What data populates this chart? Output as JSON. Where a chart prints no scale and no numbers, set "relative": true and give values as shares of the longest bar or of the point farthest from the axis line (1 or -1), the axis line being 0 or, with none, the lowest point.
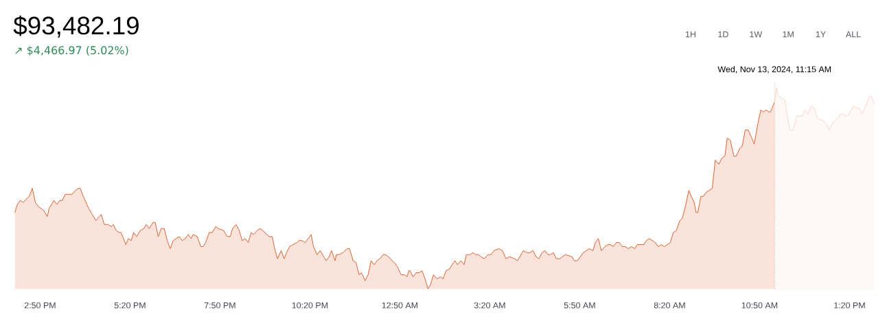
{
  "chart_data": {
    "type": "area",
    "title": "$93,482.19",
    "subtitle": "↗ $4,466.97 (5.02%)",
    "relative": true,
    "annotations": [
      "1H",
      "1D",
      "1W",
      "1M",
      "1Y",
      "ALL"
    ],
    "xlim": [
      "2024-11-12T14:06",
      "2024-11-13T14:03"
    ],
    "xticks": [
      {
        "value": "2024-11-12T14:50",
        "label": "2:50 PM"
      },
      {
        "value": "2024-11-12T17:20",
        "label": "5:20 PM"
      },
      {
        "value": "2024-11-12T19:50",
        "label": "7:50 PM"
      },
      {
        "value": "2024-11-12T22:20",
        "label": "10:20 PM"
      },
      {
        "value": "2024-11-13T00:50",
        "label": "12:50 AM"
      },
      {
        "value": "2024-11-13T03:20",
        "label": "3:20 AM"
      },
      {
        "value": "2024-11-13T05:50",
        "label": "5:50 AM"
      },
      {
        "value": "2024-11-13T08:20",
        "label": "8:20 AM"
      },
      {
        "value": "2024-11-13T10:50",
        "label": "10:50 AM"
      },
      {
        "value": "2024-11-13T13:20",
        "label": "1:20 PM"
      }
    ],
    "marker": "none",
    "ref_lines": [
      {
        "axis": "x",
        "value": "2024-11-13T11:15",
        "label": "Wed, Nov 13, 2024, 11:15 AM",
        "color": "#f0a868",
        "line_style": "dotted"
      }
    ],
    "series": [
      {
        "color": "#d9531e",
        "x": [
          "2024-11-12T14:08",
          "2024-11-12T14:12",
          "2024-11-12T14:17",
          "2024-11-12T14:22",
          "2024-11-12T14:28",
          "2024-11-12T14:32",
          "2024-11-12T14:37",
          "2024-11-12T14:42",
          "2024-11-12T14:47",
          "2024-11-12T14:56",
          "2024-11-12T15:02",
          "2024-11-12T15:05",
          "2024-11-12T15:13",
          "2024-11-12T15:18",
          "2024-11-12T15:23",
          "2024-11-12T15:27",
          "2024-11-12T15:32",
          "2024-11-12T15:37",
          "2024-11-12T15:43",
          "2024-11-12T15:49",
          "2024-11-12T15:54",
          "2024-11-12T15:57",
          "2024-11-12T16:02",
          "2024-11-12T16:08",
          "2024-11-12T16:11",
          "2024-11-12T16:17",
          "2024-11-12T16:23",
          "2024-11-12T16:26",
          "2024-11-12T16:32",
          "2024-11-12T16:37",
          "2024-11-12T16:43",
          "2024-11-12T16:49",
          "2024-11-12T16:52",
          "2024-11-12T16:57",
          "2024-11-12T17:02",
          "2024-11-12T17:05",
          "2024-11-12T17:13",
          "2024-11-12T17:17",
          "2024-11-12T17:22",
          "2024-11-12T17:26",
          "2024-11-12T17:31",
          "2024-11-12T17:37",
          "2024-11-12T17:43",
          "2024-11-12T17:47",
          "2024-11-12T17:52",
          "2024-11-12T17:58",
          "2024-11-12T18:02",
          "2024-11-12T18:07",
          "2024-11-12T18:12",
          "2024-11-12T18:17",
          "2024-11-12T18:22",
          "2024-11-12T18:27",
          "2024-11-12T18:32",
          "2024-11-12T18:37",
          "2024-11-12T18:42",
          "2024-11-12T18:47",
          "2024-11-12T18:52",
          "2024-11-12T18:57",
          "2024-11-12T19:02",
          "2024-11-12T19:05",
          "2024-11-12T19:12",
          "2024-11-12T19:18",
          "2024-11-12T19:22",
          "2024-11-12T19:26",
          "2024-11-12T19:32",
          "2024-11-12T19:37",
          "2024-11-12T19:43",
          "2024-11-12T19:47",
          "2024-11-12T19:56",
          "2024-11-12T20:02",
          "2024-11-12T20:07",
          "2024-11-12T20:11",
          "2024-11-12T20:17",
          "2024-11-12T20:22",
          "2024-11-12T20:27",
          "2024-11-12T20:32",
          "2024-11-12T20:37",
          "2024-11-12T20:42",
          "2024-11-12T20:46",
          "2024-11-12T20:52",
          "2024-11-12T20:57",
          "2024-11-12T21:05",
          "2024-11-12T21:12",
          "2024-11-12T21:17",
          "2024-11-12T21:22",
          "2024-11-12T21:26",
          "2024-11-12T21:32",
          "2024-11-12T21:37",
          "2024-11-12T21:41",
          "2024-11-12T21:46",
          "2024-11-12T21:52",
          "2024-11-12T21:58",
          "2024-11-12T22:02",
          "2024-11-12T22:07",
          "2024-11-12T22:12",
          "2024-11-12T22:17",
          "2024-11-12T22:22",
          "2024-11-12T22:26",
          "2024-11-12T22:32",
          "2024-11-12T22:37",
          "2024-11-12T22:41",
          "2024-11-12T22:47",
          "2024-11-12T22:52",
          "2024-11-12T22:56",
          "2024-11-12T23:02",
          "2024-11-12T23:04",
          "2024-11-12T23:09",
          "2024-11-12T23:15",
          "2024-11-12T23:22",
          "2024-11-12T23:26",
          "2024-11-12T23:32",
          "2024-11-12T23:37",
          "2024-11-12T23:42",
          "2024-11-12T23:46",
          "2024-11-12T23:52",
          "2024-11-12T23:57",
          "2024-11-13T00:02",
          "2024-11-13T00:07",
          "2024-11-13T00:12",
          "2024-11-13T00:17",
          "2024-11-13T00:22",
          "2024-11-13T00:26",
          "2024-11-13T00:31",
          "2024-11-13T00:37",
          "2024-11-13T00:41",
          "2024-11-13T00:46",
          "2024-11-13T00:52",
          "2024-11-13T00:58",
          "2024-11-13T01:02",
          "2024-11-13T01:05",
          "2024-11-13T01:07",
          "2024-11-13T01:12",
          "2024-11-13T01:17",
          "2024-11-13T01:22",
          "2024-11-13T01:27",
          "2024-11-13T01:32",
          "2024-11-13T01:37",
          "2024-11-13T01:41",
          "2024-11-13T01:46",
          "2024-11-13T01:52",
          "2024-11-13T01:58",
          "2024-11-13T02:02",
          "2024-11-13T02:07",
          "2024-11-13T02:13",
          "2024-11-13T02:17",
          "2024-11-13T02:22",
          "2024-11-13T02:26",
          "2024-11-13T02:32",
          "2024-11-13T02:37",
          "2024-11-13T02:41",
          "2024-11-13T02:47",
          "2024-11-13T02:52",
          "2024-11-13T02:56",
          "2024-11-13T03:01",
          "2024-11-13T03:05",
          "2024-11-13T03:11",
          "2024-11-13T03:17",
          "2024-11-13T03:22",
          "2024-11-13T03:27",
          "2024-11-13T03:35",
          "2024-11-13T03:41",
          "2024-11-13T03:47",
          "2024-11-13T03:53",
          "2024-11-13T04:01",
          "2024-11-13T04:06",
          "2024-11-13T04:16",
          "2024-11-13T04:22",
          "2024-11-13T04:27",
          "2024-11-13T04:32",
          "2024-11-13T04:37",
          "2024-11-13T04:42",
          "2024-11-13T04:47",
          "2024-11-13T04:52",
          "2024-11-13T04:57",
          "2024-11-13T05:01",
          "2024-11-13T05:06",
          "2024-11-13T05:11",
          "2024-11-13T05:17",
          "2024-11-13T05:21",
          "2024-11-13T05:26",
          "2024-11-13T05:37",
          "2024-11-13T05:41",
          "2024-11-13T05:46",
          "2024-11-13T05:51",
          "2024-11-13T05:56",
          "2024-11-13T06:01",
          "2024-11-13T06:06",
          "2024-11-13T06:12",
          "2024-11-13T06:16",
          "2024-11-13T06:21",
          "2024-11-13T06:26",
          "2024-11-13T06:32",
          "2024-11-13T06:37",
          "2024-11-13T06:41",
          "2024-11-13T06:46",
          "2024-11-13T06:51",
          "2024-11-13T06:56",
          "2024-11-13T07:01",
          "2024-11-13T07:06",
          "2024-11-13T07:11",
          "2024-11-13T07:16",
          "2024-11-13T07:22",
          "2024-11-13T07:26",
          "2024-11-13T07:32",
          "2024-11-13T07:37",
          "2024-11-13T07:41",
          "2024-11-13T07:46",
          "2024-11-13T07:51",
          "2024-11-13T07:56",
          "2024-11-13T08:01",
          "2024-11-13T08:06",
          "2024-11-13T08:11",
          "2024-11-13T08:16",
          "2024-11-13T08:21",
          "2024-11-13T08:26",
          "2024-11-13T08:31",
          "2024-11-13T08:37",
          "2024-11-13T08:41",
          "2024-11-13T08:47",
          "2024-11-13T08:52",
          "2024-11-13T08:56",
          "2024-11-13T09:01",
          "2024-11-13T09:04",
          "2024-11-13T09:07",
          "2024-11-13T09:12",
          "2024-11-13T09:16",
          "2024-11-13T09:21",
          "2024-11-13T09:26",
          "2024-11-13T09:31",
          "2024-11-13T09:36",
          "2024-11-13T09:42",
          "2024-11-13T09:47",
          "2024-11-13T09:52",
          "2024-11-13T09:56",
          "2024-11-13T10:01",
          "2024-11-13T10:07",
          "2024-11-13T10:11",
          "2024-11-13T10:17",
          "2024-11-13T10:21",
          "2024-11-13T10:26",
          "2024-11-13T10:31",
          "2024-11-13T10:37",
          "2024-11-13T10:41",
          "2024-11-13T10:47",
          "2024-11-13T10:52",
          "2024-11-13T10:56",
          "2024-11-13T11:01",
          "2024-11-13T11:05",
          "2024-11-13T11:08",
          "2024-11-13T11:11",
          "2024-11-13T11:15"
        ],
        "values": [
          0.38,
          0.42,
          0.44,
          0.43,
          0.45,
          0.46,
          0.5,
          0.43,
          0.41,
          0.39,
          0.36,
          0.4,
          0.44,
          0.42,
          0.44,
          0.44,
          0.47,
          0.47,
          0.47,
          0.49,
          0.5,
          0.5,
          0.46,
          0.42,
          0.4,
          0.37,
          0.34,
          0.35,
          0.37,
          0.32,
          0.32,
          0.31,
          0.32,
          0.29,
          0.28,
          0.28,
          0.22,
          0.25,
          0.24,
          0.28,
          0.26,
          0.29,
          0.3,
          0.32,
          0.3,
          0.33,
          0.33,
          0.26,
          0.3,
          0.3,
          0.24,
          0.2,
          0.24,
          0.25,
          0.26,
          0.24,
          0.25,
          0.27,
          0.25,
          0.27,
          0.26,
          0.21,
          0.21,
          0.23,
          0.28,
          0.28,
          0.31,
          0.3,
          0.29,
          0.26,
          0.26,
          0.3,
          0.32,
          0.29,
          0.24,
          0.25,
          0.23,
          0.28,
          0.27,
          0.29,
          0.3,
          0.28,
          0.26,
          0.26,
          0.19,
          0.15,
          0.19,
          0.15,
          0.18,
          0.21,
          0.22,
          0.23,
          0.24,
          0.24,
          0.23,
          0.25,
          0.27,
          0.21,
          0.17,
          0.19,
          0.17,
          0.14,
          0.16,
          0.19,
          0.14,
          0.17,
          0.17,
          0.18,
          0.2,
          0.2,
          0.14,
          0.13,
          0.07,
          0.08,
          0.04,
          0.07,
          0.14,
          0.12,
          0.14,
          0.15,
          0.17,
          0.17,
          0.16,
          0.14,
          0.13,
          0.11,
          0.07,
          0.07,
          0.06,
          0.09,
          0.09,
          0.06,
          0.08,
          0.08,
          0.09,
          0.05,
          0.0,
          0.02,
          0.07,
          0.05,
          0.06,
          0.05,
          0.09,
          0.1,
          0.12,
          0.14,
          0.12,
          0.14,
          0.12,
          0.17,
          0.17,
          0.18,
          0.17,
          0.17,
          0.16,
          0.15,
          0.17,
          0.17,
          0.19,
          0.2,
          0.19,
          0.15,
          0.16,
          0.15,
          0.14,
          0.19,
          0.18,
          0.18,
          0.19,
          0.16,
          0.15,
          0.18,
          0.19,
          0.17,
          0.17,
          0.18,
          0.15,
          0.15,
          0.16,
          0.17,
          0.16,
          0.14,
          0.14,
          0.16,
          0.18,
          0.19,
          0.2,
          0.19,
          0.23,
          0.25,
          0.19,
          0.21,
          0.22,
          0.22,
          0.21,
          0.23,
          0.23,
          0.21,
          0.21,
          0.2,
          0.21,
          0.2,
          0.22,
          0.22,
          0.22,
          0.24,
          0.25,
          0.24,
          0.23,
          0.21,
          0.22,
          0.21,
          0.22,
          0.23,
          0.28,
          0.29,
          0.34,
          0.35,
          0.42,
          0.49,
          0.46,
          0.43,
          0.38,
          0.38,
          0.46,
          0.46,
          0.48,
          0.49,
          0.5,
          0.64,
          0.62,
          0.65,
          0.66,
          0.75,
          0.74,
          0.66,
          0.66,
          0.7,
          0.71,
          0.79,
          0.79,
          0.75,
          0.72,
          0.82,
          0.89,
          0.88,
          0.89,
          0.88,
          0.88,
          0.9,
          0.93
        ]
      },
      {
        "color": "#f8d4c5",
        "x": [
          "2024-11-13T11:15",
          "2024-11-13T11:18",
          "2024-11-13T11:21",
          "2024-11-13T11:26",
          "2024-11-13T11:32",
          "2024-11-13T11:37",
          "2024-11-13T11:41",
          "2024-11-13T11:46",
          "2024-11-13T11:52",
          "2024-11-13T11:56",
          "2024-11-13T12:01",
          "2024-11-13T12:06",
          "2024-11-13T12:11",
          "2024-11-13T12:16",
          "2024-11-13T12:21",
          "2024-11-13T12:26",
          "2024-11-13T12:31",
          "2024-11-13T12:35",
          "2024-11-13T12:41",
          "2024-11-13T12:46",
          "2024-11-13T12:51",
          "2024-11-13T12:56",
          "2024-11-13T13:01",
          "2024-11-13T13:05",
          "2024-11-13T13:10",
          "2024-11-13T13:14",
          "2024-11-13T13:20",
          "2024-11-13T13:26",
          "2024-11-13T13:31",
          "2024-11-13T13:36",
          "2024-11-13T13:41",
          "2024-11-13T13:47",
          "2024-11-13T13:52",
          "2024-11-13T13:56",
          "2024-11-13T14:01"
        ],
        "values": [
          0.93,
          1.0,
          0.96,
          0.95,
          0.94,
          0.85,
          0.79,
          0.79,
          0.86,
          0.86,
          0.86,
          0.89,
          0.87,
          0.91,
          0.9,
          0.85,
          0.84,
          0.84,
          0.82,
          0.79,
          0.82,
          0.84,
          0.85,
          0.87,
          0.87,
          0.86,
          0.87,
          0.91,
          0.9,
          0.9,
          0.87,
          0.91,
          0.95,
          0.96,
          0.92
        ]
      }
    ]
  }
}
